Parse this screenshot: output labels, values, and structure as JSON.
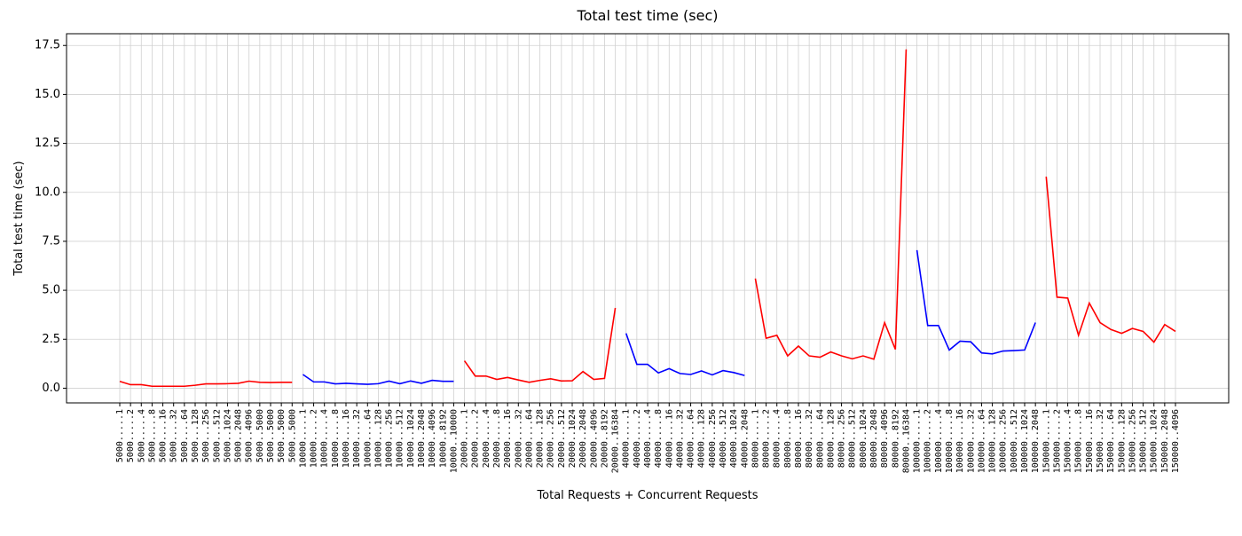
{
  "chart_data": {
    "type": "line",
    "title": "Total test time (sec)",
    "x_label": "Total Requests + Concurrent Requests",
    "y_label": "Total test time (sec)",
    "ylim": [
      -0.75,
      18.1
    ],
    "yticks": [
      {
        "value": 0,
        "label": "0.0"
      },
      2.5,
      {
        "value": 5,
        "label": "5.0"
      },
      7.5,
      {
        "value": 10,
        "label": "10.0"
      },
      12.5,
      {
        "value": 15,
        "label": "15.0"
      },
      17.5
    ],
    "grid": true,
    "series": [
      {
        "color": "#ff0000",
        "categories": [
          "5000.....1",
          "5000.....2",
          "5000.....4",
          "5000.....8",
          "5000....16",
          "5000....32",
          "5000....64",
          "5000...128",
          "5000...256",
          "5000...512",
          "5000..1024",
          "5000..2048",
          "5000..4096",
          "5000..5000",
          "5000..5000",
          "5000..5000",
          "5000..5000"
        ],
        "values": [
          0.35,
          0.18,
          0.18,
          0.1,
          0.1,
          0.1,
          0.1,
          0.15,
          0.22,
          0.22,
          0.23,
          0.25,
          0.36,
          0.3,
          0.29,
          0.3,
          0.3
        ]
      },
      {
        "color": "#0000ff",
        "categories": [
          "10000.....1",
          "10000.....2",
          "10000.....4",
          "10000.....8",
          "10000....16",
          "10000....32",
          "10000....64",
          "10000...128",
          "10000...256",
          "10000...512",
          "10000..1024",
          "10000..2048",
          "10000..4096",
          "10000..8192",
          "10000..10000"
        ],
        "values": [
          0.7,
          0.32,
          0.32,
          0.22,
          0.25,
          0.22,
          0.2,
          0.23,
          0.36,
          0.23,
          0.37,
          0.25,
          0.4,
          0.35,
          0.35
        ]
      },
      {
        "color": "#ff0000",
        "categories": [
          "20000.....1",
          "20000.....2",
          "20000.....4",
          "20000.....8",
          "20000....16",
          "20000....32",
          "20000....64",
          "20000...128",
          "20000...256",
          "20000...512",
          "20000..1024",
          "20000..2048",
          "20000..4096",
          "20000..8192",
          "20000..16384"
        ],
        "values": [
          1.4,
          0.62,
          0.62,
          0.45,
          0.55,
          0.42,
          0.3,
          0.4,
          0.48,
          0.37,
          0.38,
          0.85,
          0.45,
          0.5,
          4.1
        ]
      },
      {
        "color": "#0000ff",
        "categories": [
          "40000.....1",
          "40000.....2",
          "40000.....4",
          "40000.....8",
          "40000....16",
          "40000....32",
          "40000....64",
          "40000...128",
          "40000...256",
          "40000...512",
          "40000..1024",
          "40000..2048"
        ],
        "values": [
          2.8,
          1.22,
          1.22,
          0.78,
          1.0,
          0.75,
          0.7,
          0.88,
          0.68,
          0.9,
          0.8,
          0.65
        ]
      },
      {
        "color": "#ff0000",
        "categories": [
          "80000.....1",
          "80000.....2",
          "80000.....4",
          "80000.....8",
          "80000....16",
          "80000....32",
          "80000....64",
          "80000...128",
          "80000...256",
          "80000...512",
          "80000..1024",
          "80000..2048",
          "80000..4096",
          "80000..8192",
          "80000..16384"
        ],
        "values": [
          5.6,
          2.55,
          2.7,
          1.65,
          2.15,
          1.65,
          1.58,
          1.85,
          1.65,
          1.5,
          1.65,
          1.48,
          3.35,
          1.98,
          17.3
        ]
      },
      {
        "color": "#0000ff",
        "categories": [
          "100000.....1",
          "100000.....2",
          "100000.....4",
          "100000.....8",
          "100000....16",
          "100000....32",
          "100000....64",
          "100000...128",
          "100000...256",
          "100000...512",
          "100000..1024",
          "100000..2048"
        ],
        "values": [
          7.05,
          3.2,
          3.2,
          1.95,
          2.4,
          2.37,
          1.8,
          1.75,
          1.9,
          1.92,
          1.95,
          3.35
        ]
      },
      {
        "color": "#ff0000",
        "categories": [
          "150000.....1",
          "150000.....2",
          "150000.....4",
          "150000.....8",
          "150000....16",
          "150000....32",
          "150000....64",
          "150000...128",
          "150000...256",
          "150000...512",
          "150000..1024",
          "150000..2048",
          "150000..4096"
        ],
        "values": [
          10.8,
          4.65,
          4.6,
          2.7,
          4.35,
          3.35,
          3.0,
          2.8,
          3.05,
          2.9,
          2.35,
          3.25,
          2.9
        ]
      }
    ]
  }
}
